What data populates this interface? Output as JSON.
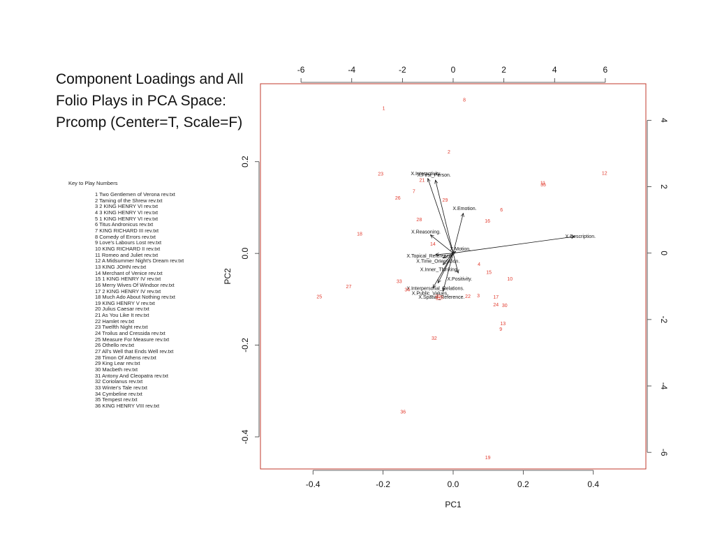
{
  "title_lines": [
    "Component Loadings and All",
    "Folio Plays in PCA Space:",
    "Prcomp (Center=T, Scale=F)"
  ],
  "key": {
    "heading": "Key to Play Numbers",
    "plays": [
      "1 Two Gentlemen of Verona rev.txt",
      "2 Taming of the Shrew rev.txt",
      "3 2 KING HENRY VI rev.txt",
      "4 3 KING HENRY VI rev.txt",
      "5 1 KING HENRY VI rev.txt",
      "6 Titus Andronicus rev.txt",
      "7 KING RICHARD III rev.txt",
      "8 Comedy of Errors rev.txt",
      "9 Love's Labours Lost rev.txt",
      "10 KING RICHARD II rev.txt",
      "11 Romeo and Juliet rev.txt",
      "12 A Midsummer Night's Dream rev.txt",
      "13 KING JOHN rev.txt",
      "14 Merchant of Venice rev.txt",
      "15 1 KING HENRY IV rev.txt",
      "16 Merry Wives Of Windsor rev.txt",
      "17 2 KING HENRY IV rev.txt",
      "18 Much Ado About Nothing rev.txt",
      "19 KING HENRY V rev.txt",
      "20 Julius Caesar rev.txt",
      "21 As You Like It rev.txt",
      "22 Hamlet rev.txt",
      "23 Twelfth Night rev.txt",
      "24 Troilus and Cressida rev.txt",
      "25 Measure For Measure rev.txt",
      "26 Othello rev.txt",
      "27 All's Well that Ends Well rev.txt",
      "28 Timon Of Athens rev.txt",
      "29 King Lear rev.txt",
      "30 Macbeth rev.txt",
      "31 Antony And Cleopatra rev.txt",
      "32 Coriolanus rev.txt",
      "33 Winter's Tale rev.txt",
      "34 Cymbeline rev.txt",
      "35 Tempest rev.txt",
      "36 KING HENRY VIII rev.txt"
    ]
  },
  "colors": {
    "points": "#e23b2e",
    "frame": "#c0392b",
    "arrows": "#111111",
    "text": "#111111"
  },
  "chart_data": {
    "type": "scatter",
    "subtype": "biplot",
    "xlabel": "PC1",
    "ylabel": "PC2",
    "xlim": [
      -0.55,
      0.55
    ],
    "ylim": [
      -0.47,
      0.37
    ],
    "x_ticks": [
      -0.4,
      -0.2,
      0.0,
      0.2,
      0.4
    ],
    "x_tick_labels": [
      "-0.4",
      "-0.2",
      "0.0",
      "0.2",
      "0.4"
    ],
    "y_ticks": [
      -0.4,
      -0.2,
      0.0,
      0.2
    ],
    "y_tick_labels": [
      "-0.4",
      "-0.2",
      "0.0",
      "0.2"
    ],
    "top_axis": {
      "lim": [
        -7.6,
        7.6
      ],
      "ticks": [
        -6,
        -4,
        -2,
        0,
        2,
        4,
        6
      ],
      "labels": [
        "-6",
        "-4",
        "-2",
        "0",
        "2",
        "4",
        "6"
      ]
    },
    "right_axis": {
      "lim": [
        -6.5,
        5.1
      ],
      "ticks": [
        -6,
        -4,
        -2,
        0,
        2,
        4
      ],
      "labels": [
        "-6",
        "-4",
        "-2",
        "0",
        "2",
        "4"
      ]
    },
    "grid": false,
    "points": [
      {
        "label": "1",
        "x": -0.198,
        "y": 0.317
      },
      {
        "label": "2",
        "x": -0.012,
        "y": 0.222
      },
      {
        "label": "3",
        "x": 0.072,
        "y": -0.092
      },
      {
        "label": "4",
        "x": 0.074,
        "y": -0.023
      },
      {
        "label": "5",
        "x": -0.032,
        "y": -0.096
      },
      {
        "label": "6",
        "x": 0.138,
        "y": 0.095
      },
      {
        "label": "7",
        "x": -0.112,
        "y": 0.136
      },
      {
        "label": "8",
        "x": 0.032,
        "y": 0.335
      },
      {
        "label": "9",
        "x": 0.136,
        "y": -0.165
      },
      {
        "label": "10",
        "x": 0.162,
        "y": -0.055
      },
      {
        "label": "11",
        "x": 0.256,
        "y": 0.154
      },
      {
        "label": "12",
        "x": 0.432,
        "y": 0.175
      },
      {
        "label": "13",
        "x": 0.142,
        "y": -0.153
      },
      {
        "label": "14",
        "x": -0.058,
        "y": 0.021
      },
      {
        "label": "15",
        "x": 0.102,
        "y": -0.041
      },
      {
        "label": "16",
        "x": 0.098,
        "y": 0.071
      },
      {
        "label": "17",
        "x": 0.122,
        "y": -0.095
      },
      {
        "label": "18",
        "x": -0.267,
        "y": 0.043
      },
      {
        "label": "19",
        "x": 0.099,
        "y": -0.445
      },
      {
        "label": "20",
        "x": -0.044,
        "y": -0.093
      },
      {
        "label": "21",
        "x": -0.089,
        "y": 0.16
      },
      {
        "label": "22",
        "x": 0.042,
        "y": -0.093
      },
      {
        "label": "23",
        "x": -0.207,
        "y": 0.174
      },
      {
        "label": "24",
        "x": 0.122,
        "y": -0.112
      },
      {
        "label": "25",
        "x": -0.382,
        "y": -0.094
      },
      {
        "label": "26",
        "x": -0.158,
        "y": 0.121
      },
      {
        "label": "27",
        "x": -0.298,
        "y": -0.072
      },
      {
        "label": "28",
        "x": -0.097,
        "y": 0.074
      },
      {
        "label": "29",
        "x": -0.023,
        "y": 0.117
      },
      {
        "label": "30",
        "x": 0.147,
        "y": -0.113
      },
      {
        "label": "31",
        "x": -0.042,
        "y": -0.098
      },
      {
        "label": "32",
        "x": -0.054,
        "y": -0.185
      },
      {
        "label": "33",
        "x": -0.154,
        "y": -0.061
      },
      {
        "label": "34",
        "x": -0.131,
        "y": -0.079
      },
      {
        "label": "35",
        "x": 0.257,
        "y": 0.15
      },
      {
        "label": "36",
        "x": -0.143,
        "y": -0.345
      }
    ],
    "loadings": [
      {
        "label": "X.Description.",
        "x": 4.8,
        "y": 0.5
      },
      {
        "label": "X.Emotion.",
        "x": 0.4,
        "y": 1.2
      },
      {
        "label": "X.Reasoning.",
        "x": -0.9,
        "y": 0.55
      },
      {
        "label": "X.Interactivity.",
        "x": -1.0,
        "y": 2.25
      },
      {
        "label": "X.First_Person.",
        "x": -0.7,
        "y": 2.2
      },
      {
        "label": "X.Topical_Reference.",
        "x": -0.7,
        "y": -0.05
      },
      {
        "label": "X.Time_Orientation.",
        "x": -0.4,
        "y": -0.15
      },
      {
        "label": "X.Inner_Thinking.",
        "x": -0.4,
        "y": -0.35
      },
      {
        "label": "X.Motion.",
        "x": 0.1,
        "y": 0.05
      },
      {
        "label": "X.Interpersonal_Relations.",
        "x": -0.6,
        "y": -0.9
      },
      {
        "label": "X.Public_Values.",
        "x": -0.8,
        "y": -1.05
      },
      {
        "label": "X.Spatial_Reference.",
        "x": -0.4,
        "y": -1.15
      },
      {
        "label": "X.Positivity.",
        "x": 0.2,
        "y": -0.6
      }
    ]
  }
}
